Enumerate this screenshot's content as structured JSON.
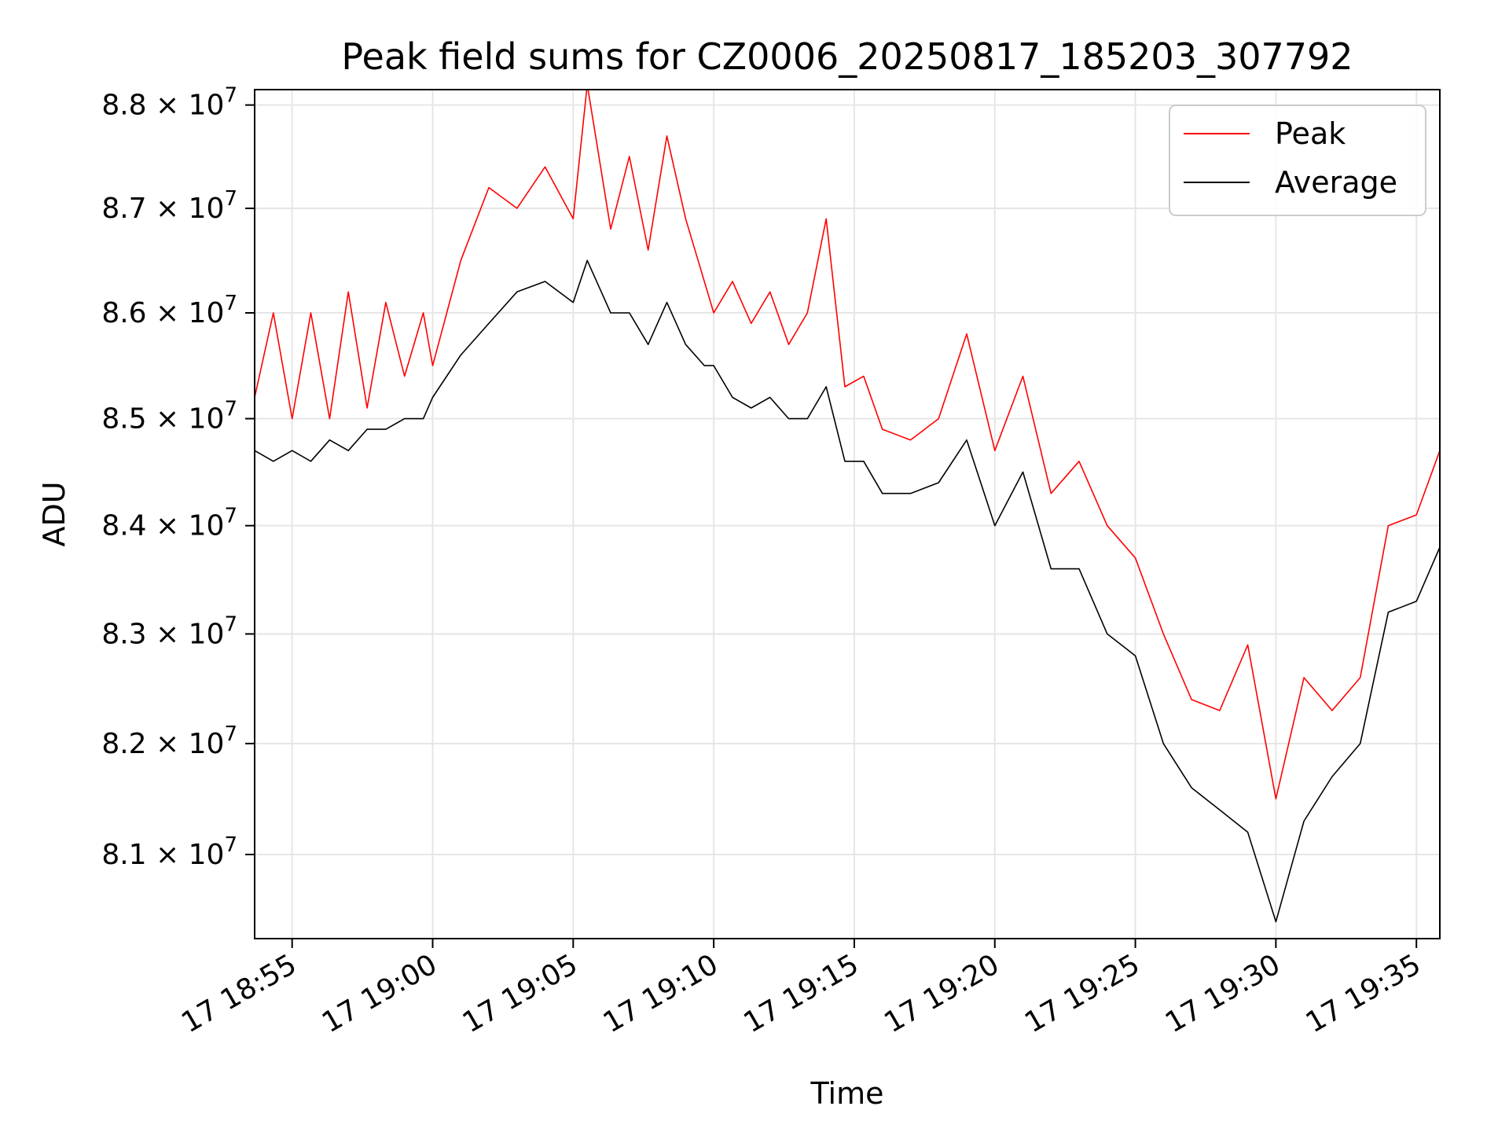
{
  "chart_data": {
    "type": "line",
    "title": "Peak field sums for CZ0006_20250817_185203_307792",
    "xlabel": "Time",
    "ylabel": "ADU",
    "x_range_minutes": [
      "18:53:40",
      "19:35:50"
    ],
    "x_ticks": [
      "17 18:55",
      "17 19:00",
      "17 19:05",
      "17 19:10",
      "17 19:15",
      "17 19:20",
      "17 19:25",
      "17 19:30",
      "17 19:35"
    ],
    "y_ticks": [
      {
        "value": 81000000,
        "mantissa": "8.1",
        "base": "10",
        "exp": "7"
      },
      {
        "value": 82000000,
        "mantissa": "8.2",
        "base": "10",
        "exp": "7"
      },
      {
        "value": 83000000,
        "mantissa": "8.3",
        "base": "10",
        "exp": "7"
      },
      {
        "value": 84000000,
        "mantissa": "8.4",
        "base": "10",
        "exp": "7"
      },
      {
        "value": 85000000,
        "mantissa": "8.5",
        "base": "10",
        "exp": "7"
      },
      {
        "value": 86000000,
        "mantissa": "8.6",
        "base": "10",
        "exp": "7"
      },
      {
        "value": 87000000,
        "mantissa": "8.7",
        "base": "10",
        "exp": "7"
      },
      {
        "value": 88000000,
        "mantissa": "8.8",
        "base": "10",
        "exp": "7"
      }
    ],
    "ylim": [
      80250000,
      88150000
    ],
    "yscale": "log",
    "grid": true,
    "legend_position": "top-right",
    "series": [
      {
        "name": "Peak",
        "color": "#ff0000",
        "points": [
          [
            "18:53:40",
            85.2
          ],
          [
            "18:54:20",
            86.0
          ],
          [
            "18:55:00",
            85.0
          ],
          [
            "18:55:40",
            86.0
          ],
          [
            "18:56:20",
            85.0
          ],
          [
            "18:57:00",
            86.2
          ],
          [
            "18:57:40",
            85.1
          ],
          [
            "18:58:20",
            86.1
          ],
          [
            "18:59:00",
            85.4
          ],
          [
            "18:59:40",
            86.0
          ],
          [
            "19:00:00",
            85.5
          ],
          [
            "19:01:00",
            86.5
          ],
          [
            "19:02:00",
            87.2
          ],
          [
            "19:03:00",
            87.0
          ],
          [
            "19:04:00",
            87.4
          ],
          [
            "19:05:00",
            86.9
          ],
          [
            "19:05:30",
            88.2
          ],
          [
            "19:06:20",
            86.8
          ],
          [
            "19:07:00",
            87.5
          ],
          [
            "19:07:40",
            86.6
          ],
          [
            "19:08:20",
            87.7
          ],
          [
            "19:09:00",
            86.9
          ],
          [
            "19:09:40",
            86.3
          ],
          [
            "19:10:00",
            86.0
          ],
          [
            "19:10:40",
            86.3
          ],
          [
            "19:11:20",
            85.9
          ],
          [
            "19:12:00",
            86.2
          ],
          [
            "19:12:40",
            85.7
          ],
          [
            "19:13:20",
            86.0
          ],
          [
            "19:14:00",
            86.9
          ],
          [
            "19:14:40",
            85.3
          ],
          [
            "19:15:20",
            85.4
          ],
          [
            "19:16:00",
            84.9
          ],
          [
            "19:17:00",
            84.8
          ],
          [
            "19:18:00",
            85.0
          ],
          [
            "19:19:00",
            85.8
          ],
          [
            "19:20:00",
            84.7
          ],
          [
            "19:21:00",
            85.4
          ],
          [
            "19:22:00",
            84.3
          ],
          [
            "19:23:00",
            84.6
          ],
          [
            "19:24:00",
            84.0
          ],
          [
            "19:25:00",
            83.7
          ],
          [
            "19:26:00",
            83.0
          ],
          [
            "19:27:00",
            82.4
          ],
          [
            "19:28:00",
            82.3
          ],
          [
            "19:29:00",
            82.9
          ],
          [
            "19:30:00",
            81.5
          ],
          [
            "19:31:00",
            82.6
          ],
          [
            "19:32:00",
            82.3
          ],
          [
            "19:33:00",
            82.6
          ],
          [
            "19:34:00",
            84.0
          ],
          [
            "19:35:00",
            84.1
          ],
          [
            "19:35:50",
            84.7
          ]
        ]
      },
      {
        "name": "Average",
        "color": "#000000",
        "points": [
          [
            "18:53:40",
            84.7
          ],
          [
            "18:54:20",
            84.6
          ],
          [
            "18:55:00",
            84.7
          ],
          [
            "18:55:40",
            84.6
          ],
          [
            "18:56:20",
            84.8
          ],
          [
            "18:57:00",
            84.7
          ],
          [
            "18:57:40",
            84.9
          ],
          [
            "18:58:20",
            84.9
          ],
          [
            "18:59:00",
            85.0
          ],
          [
            "18:59:40",
            85.0
          ],
          [
            "19:00:00",
            85.2
          ],
          [
            "19:01:00",
            85.6
          ],
          [
            "19:02:00",
            85.9
          ],
          [
            "19:03:00",
            86.2
          ],
          [
            "19:04:00",
            86.3
          ],
          [
            "19:05:00",
            86.1
          ],
          [
            "19:05:30",
            86.5
          ],
          [
            "19:06:20",
            86.0
          ],
          [
            "19:07:00",
            86.0
          ],
          [
            "19:07:40",
            85.7
          ],
          [
            "19:08:20",
            86.1
          ],
          [
            "19:09:00",
            85.7
          ],
          [
            "19:09:40",
            85.5
          ],
          [
            "19:10:00",
            85.5
          ],
          [
            "19:10:40",
            85.2
          ],
          [
            "19:11:20",
            85.1
          ],
          [
            "19:12:00",
            85.2
          ],
          [
            "19:12:40",
            85.0
          ],
          [
            "19:13:20",
            85.0
          ],
          [
            "19:14:00",
            85.3
          ],
          [
            "19:14:40",
            84.6
          ],
          [
            "19:15:20",
            84.6
          ],
          [
            "19:16:00",
            84.3
          ],
          [
            "19:17:00",
            84.3
          ],
          [
            "19:18:00",
            84.4
          ],
          [
            "19:19:00",
            84.8
          ],
          [
            "19:20:00",
            84.0
          ],
          [
            "19:21:00",
            84.5
          ],
          [
            "19:22:00",
            83.6
          ],
          [
            "19:23:00",
            83.6
          ],
          [
            "19:24:00",
            83.0
          ],
          [
            "19:25:00",
            82.8
          ],
          [
            "19:26:00",
            82.0
          ],
          [
            "19:27:00",
            81.6
          ],
          [
            "19:28:00",
            81.4
          ],
          [
            "19:29:00",
            81.2
          ],
          [
            "19:30:00",
            80.4
          ],
          [
            "19:31:00",
            81.3
          ],
          [
            "19:32:00",
            81.7
          ],
          [
            "19:33:00",
            82.0
          ],
          [
            "19:34:00",
            83.2
          ],
          [
            "19:35:00",
            83.3
          ],
          [
            "19:35:50",
            83.8
          ]
        ]
      }
    ]
  }
}
